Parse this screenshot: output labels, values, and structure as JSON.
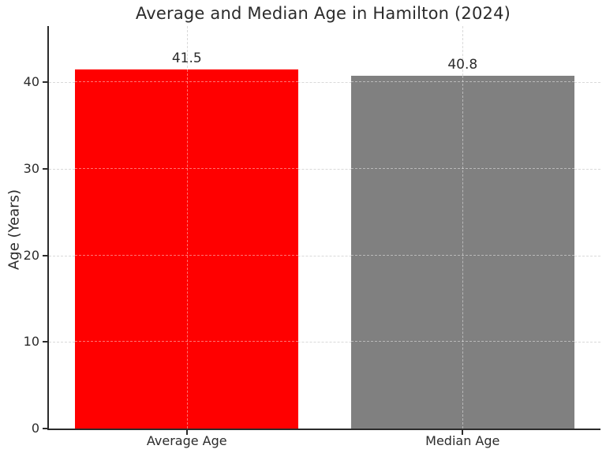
{
  "chart_data": {
    "type": "bar",
    "title": "Average and Median Age in Hamilton (2024)",
    "categories": [
      "Average Age",
      "Median Age"
    ],
    "values": [
      41.5,
      40.8
    ],
    "value_labels": [
      "41.5",
      "40.8"
    ],
    "bar_colors": [
      "#ff0000",
      "#808080"
    ],
    "xlabel": "",
    "ylabel": "Age (Years)",
    "yticks": [
      0,
      10,
      20,
      30,
      40
    ],
    "ylim": [
      0,
      46.5
    ],
    "bar_width_fraction": 0.81,
    "grid": true,
    "grid_style": "dashed",
    "legend_position": "none",
    "colors": {
      "text": "#2b2b2b",
      "spine": "#2b2b2b",
      "grid": "#d9d9d9",
      "background": "#ffffff"
    }
  }
}
